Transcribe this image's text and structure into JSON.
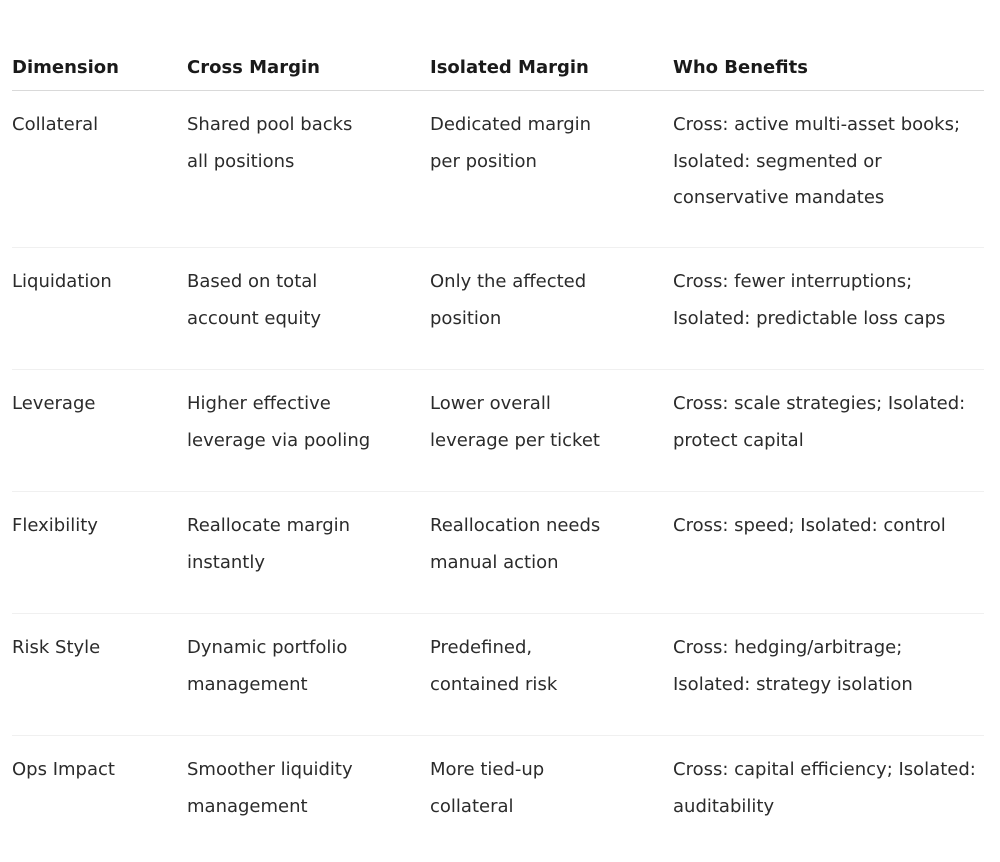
{
  "table": {
    "headers": [
      "Dimension",
      "Cross Margin",
      "Isolated Margin",
      "Who Benefits"
    ],
    "rows": [
      {
        "dimension": "Collateral",
        "cross": [
          "Shared pool backs",
          "all positions"
        ],
        "isolated": [
          "Dedicated margin",
          "per position"
        ],
        "benefits": [
          "Cross: active multi-asset books;",
          "Isolated: segmented or",
          "conservative mandates"
        ]
      },
      {
        "dimension": "Liquidation",
        "cross": [
          "Based on total",
          "account equity"
        ],
        "isolated": [
          "Only the affected",
          "position"
        ],
        "benefits": [
          "Cross: fewer interruptions;",
          "Isolated: predictable loss caps"
        ]
      },
      {
        "dimension": "Leverage",
        "cross": [
          "Higher effective",
          "leverage via pooling"
        ],
        "isolated": [
          "Lower overall",
          "leverage per ticket"
        ],
        "benefits": [
          "Cross: scale strategies; Isolated:",
          "protect capital"
        ]
      },
      {
        "dimension": "Flexibility",
        "cross": [
          "Reallocate margin",
          "instantly"
        ],
        "isolated": [
          "Reallocation needs",
          "manual action"
        ],
        "benefits": [
          "Cross: speed; Isolated: control"
        ]
      },
      {
        "dimension": "Risk Style",
        "cross": [
          "Dynamic portfolio",
          "management"
        ],
        "isolated": [
          "Predefined,",
          "contained risk"
        ],
        "benefits": [
          "Cross: hedging/arbitrage;",
          "Isolated: strategy isolation"
        ]
      },
      {
        "dimension": "Ops Impact",
        "cross": [
          "Smoother liquidity",
          "management"
        ],
        "isolated": [
          "More tied-up",
          "collateral"
        ],
        "benefits": [
          "Cross: capital efficiency; Isolated:",
          "auditability"
        ]
      }
    ]
  }
}
